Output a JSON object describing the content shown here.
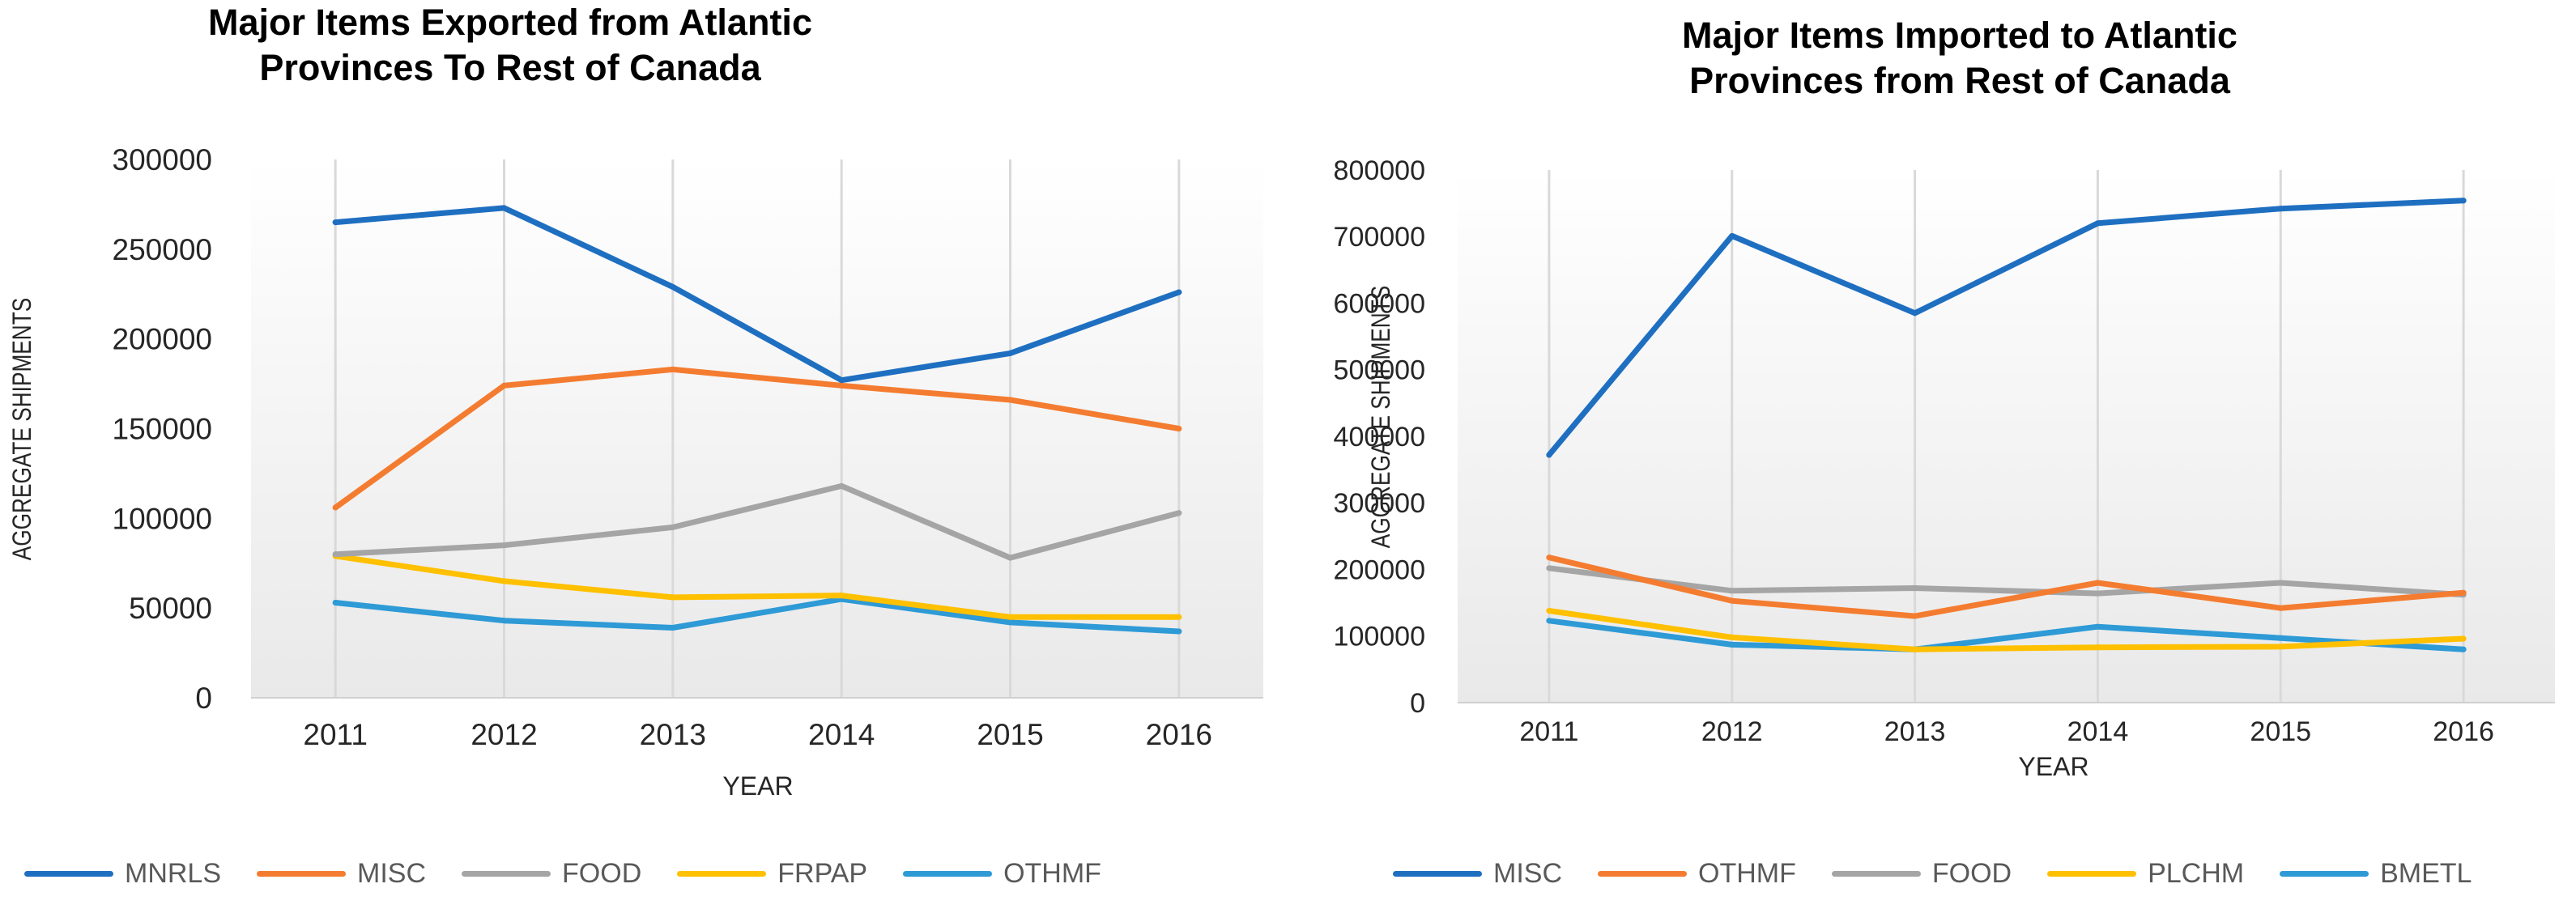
{
  "chart_data": [
    {
      "type": "line",
      "title": "Major Items Exported from Atlantic\nProvinces To Rest of Canada",
      "xlabel": "YEAR",
      "ylabel": "AGGREGATE SHIPMENTS",
      "categories": [
        "2011",
        "2012",
        "2013",
        "2014",
        "2015",
        "2016"
      ],
      "ylim": [
        0,
        300000
      ],
      "yticks": [
        "0",
        "50000",
        "100000",
        "150000",
        "200000",
        "250000",
        "300000"
      ],
      "grid": "vertical",
      "legend": "bottom",
      "series": [
        {
          "name": "MNRLS",
          "color": "#1f6fc1",
          "values": [
            265000,
            273000,
            229000,
            177000,
            192000,
            226000
          ]
        },
        {
          "name": "MISC",
          "color": "#f47c30",
          "values": [
            106000,
            174000,
            183000,
            174000,
            166000,
            150000
          ]
        },
        {
          "name": "FOOD",
          "color": "#a5a5a5",
          "values": [
            80000,
            85000,
            95000,
            118000,
            78000,
            103000
          ]
        },
        {
          "name": "FRPAP",
          "color": "#ffc000",
          "values": [
            79000,
            65000,
            56000,
            57000,
            45000,
            45000
          ]
        },
        {
          "name": "OTHMF",
          "color": "#2e9ad6",
          "values": [
            53000,
            43000,
            39000,
            55000,
            42000,
            37000
          ]
        }
      ]
    },
    {
      "type": "line",
      "title": "Major Items Imported to Atlantic\nProvinces from Rest of Canada",
      "xlabel": "YEAR",
      "ylabel": "AGGREGATE SHIPMENTS",
      "categories": [
        "2011",
        "2012",
        "2013",
        "2014",
        "2015",
        "2016"
      ],
      "ylim": [
        0,
        800000
      ],
      "yticks": [
        "0",
        "100000",
        "200000",
        "300000",
        "400000",
        "500000",
        "600000",
        "700000",
        "800000"
      ],
      "grid": "vertical",
      "legend": "bottom",
      "series": [
        {
          "name": "MISC",
          "color": "#1f6fc1",
          "values": [
            372000,
            701000,
            585000,
            720000,
            742000,
            754000
          ]
        },
        {
          "name": "OTHMF",
          "color": "#f47c30",
          "values": [
            218000,
            153000,
            130000,
            180000,
            142000,
            165000
          ]
        },
        {
          "name": "FOOD",
          "color": "#a5a5a5",
          "values": [
            202000,
            168000,
            172000,
            164000,
            180000,
            162000
          ]
        },
        {
          "name": "PLCHM",
          "color": "#ffc000",
          "values": [
            138000,
            98000,
            80000,
            83000,
            84000,
            96000
          ]
        },
        {
          "name": "BMETL",
          "color": "#2e9ad6",
          "values": [
            123000,
            87000,
            80000,
            114000,
            97000,
            80000
          ]
        }
      ]
    }
  ]
}
